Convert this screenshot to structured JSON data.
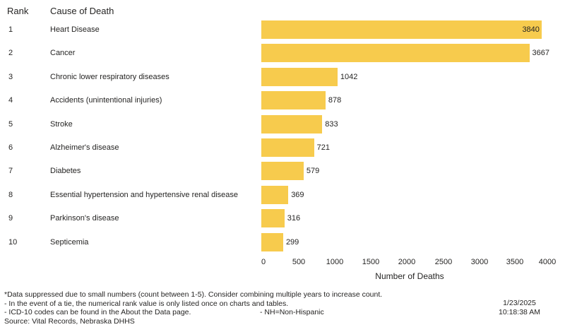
{
  "header": {
    "rank_label": "Rank",
    "cause_label": "Cause of Death"
  },
  "rows": [
    {
      "rank": "1",
      "cause": "Heart Disease",
      "value": 3840
    },
    {
      "rank": "2",
      "cause": "Cancer",
      "value": 3667
    },
    {
      "rank": "3",
      "cause": "Chronic lower respiratory diseases",
      "value": 1042
    },
    {
      "rank": "4",
      "cause": "Accidents (unintentional injuries)",
      "value": 878
    },
    {
      "rank": "5",
      "cause": "Stroke",
      "value": 833
    },
    {
      "rank": "6",
      "cause": "Alzheimer's disease",
      "value": 721
    },
    {
      "rank": "7",
      "cause": "Diabetes",
      "value": 579
    },
    {
      "rank": "8",
      "cause": "Essential hypertension and hypertensive renal disease",
      "value": 369
    },
    {
      "rank": "9",
      "cause": "Parkinson's disease",
      "value": 316
    },
    {
      "rank": "10",
      "cause": "Septicemia",
      "value": 299
    }
  ],
  "axis": {
    "ticks": [
      "0",
      "500",
      "1000",
      "1500",
      "2000",
      "2500",
      "3000",
      "3500",
      "4000"
    ],
    "xlabel": "Number of Deaths"
  },
  "colors": {
    "bar": "#f7cb4d",
    "text": "#252423"
  },
  "footer": {
    "note1": "*Data suppressed due to small numbers (count between 1-5). Consider combining multiple years to increase count.",
    "note2": "- In the event of a tie, the numerical rank value is only listed once on charts and tables.",
    "note3": "- ICD-10 codes can be found in the About the Data page.",
    "note_nh": "- NH=Non-Hispanic",
    "source": "Source: Vital Records, Nebraska DHHS",
    "date": "1/23/2025",
    "time": "10:18:38 AM"
  },
  "chart_data": {
    "type": "bar",
    "orientation": "horizontal",
    "title": "",
    "categories": [
      "Heart Disease",
      "Cancer",
      "Chronic lower respiratory diseases",
      "Accidents (unintentional injuries)",
      "Stroke",
      "Alzheimer's disease",
      "Diabetes",
      "Essential hypertension and hypertensive renal disease",
      "Parkinson's disease",
      "Septicemia"
    ],
    "ranks": [
      1,
      2,
      3,
      4,
      5,
      6,
      7,
      8,
      9,
      10
    ],
    "values": [
      3840,
      3667,
      1042,
      878,
      833,
      721,
      579,
      369,
      316,
      299
    ],
    "xlabel": "Number of Deaths",
    "ylabel": "Cause of Death",
    "xlim": [
      0,
      4000
    ],
    "xticks": [
      0,
      500,
      1000,
      1500,
      2000,
      2500,
      3000,
      3500,
      4000
    ],
    "grid": false,
    "legend": null,
    "data_labels": true
  }
}
